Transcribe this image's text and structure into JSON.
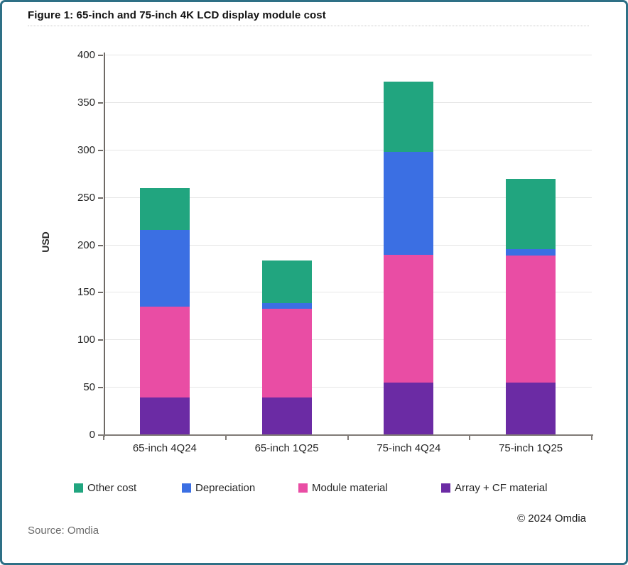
{
  "figure": {
    "title": "Figure 1: 65-inch and 75-inch 4K LCD display module cost",
    "source": "Source: Omdia",
    "copyright": "© 2024 Omdia"
  },
  "chart_data": {
    "type": "bar",
    "stacked": true,
    "title": "Figure 1: 65-inch and 75-inch 4K LCD display module cost",
    "categories": [
      "65-inch 4Q24",
      "65-inch 1Q25",
      "75-inch 4Q24",
      "75-inch 1Q25"
    ],
    "series": [
      {
        "name": "Array + CF material",
        "color": "#6B2BA4",
        "values": [
          40,
          40,
          55,
          55
        ]
      },
      {
        "name": "Module material",
        "color": "#E94DA4",
        "values": [
          95,
          93,
          135,
          134
        ]
      },
      {
        "name": "Depreciation",
        "color": "#3B6FE3",
        "values": [
          81,
          6,
          108,
          7
        ]
      },
      {
        "name": "Other cost",
        "color": "#21A57F",
        "values": [
          44,
          45,
          74,
          74
        ]
      }
    ],
    "stack_totals": [
      260,
      184,
      372,
      270
    ],
    "xlabel": "",
    "ylabel": "USD",
    "ylim": [
      0,
      400
    ],
    "ytick_step": 50,
    "yticks": [
      0,
      50,
      100,
      150,
      200,
      250,
      300,
      350,
      400
    ],
    "grid": true,
    "legend_position": "bottom",
    "legend_order": [
      "Other cost",
      "Depreciation",
      "Module material",
      "Array + CF material"
    ]
  }
}
